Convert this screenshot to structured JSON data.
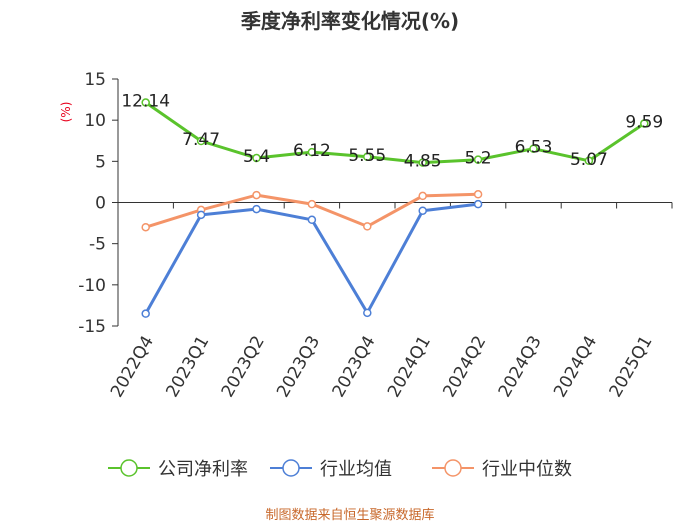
{
  "chart_data": {
    "type": "line",
    "title": "季度净利率变化情况(%)",
    "ylabel": "(%)",
    "xlabel": "",
    "categories": [
      "2022Q4",
      "2023Q1",
      "2023Q2",
      "2023Q3",
      "2023Q4",
      "2024Q1",
      "2024Q2",
      "2024Q3",
      "2024Q4",
      "2025Q1"
    ],
    "ylim": [
      -15,
      15
    ],
    "yticks": [
      15,
      10,
      5,
      0,
      -5,
      -10,
      -15
    ],
    "grid": false,
    "legend_position": "bottom",
    "series": [
      {
        "name": "公司净利率",
        "color": "#5ac32c",
        "values": [
          12.14,
          7.47,
          5.4,
          6.12,
          5.55,
          4.85,
          5.2,
          6.53,
          5.07,
          9.59
        ],
        "labels": [
          "12.14",
          "7.47",
          "5.4",
          "6.12",
          "5.55",
          "4.85",
          "5.2",
          "6.53",
          "5.07",
          "9.59"
        ]
      },
      {
        "name": "行业均值",
        "color": "#4d7fd6",
        "values": [
          -13.5,
          -1.5,
          -0.8,
          -2.1,
          -13.4,
          -1.0,
          -0.2,
          null,
          null,
          null
        ]
      },
      {
        "name": "行业中位数",
        "color": "#f49468",
        "values": [
          -3.0,
          -0.9,
          0.9,
          -0.2,
          -2.9,
          0.8,
          1.0,
          null,
          null,
          null
        ]
      }
    ],
    "source": "制图数据来自恒生聚源数据库"
  }
}
